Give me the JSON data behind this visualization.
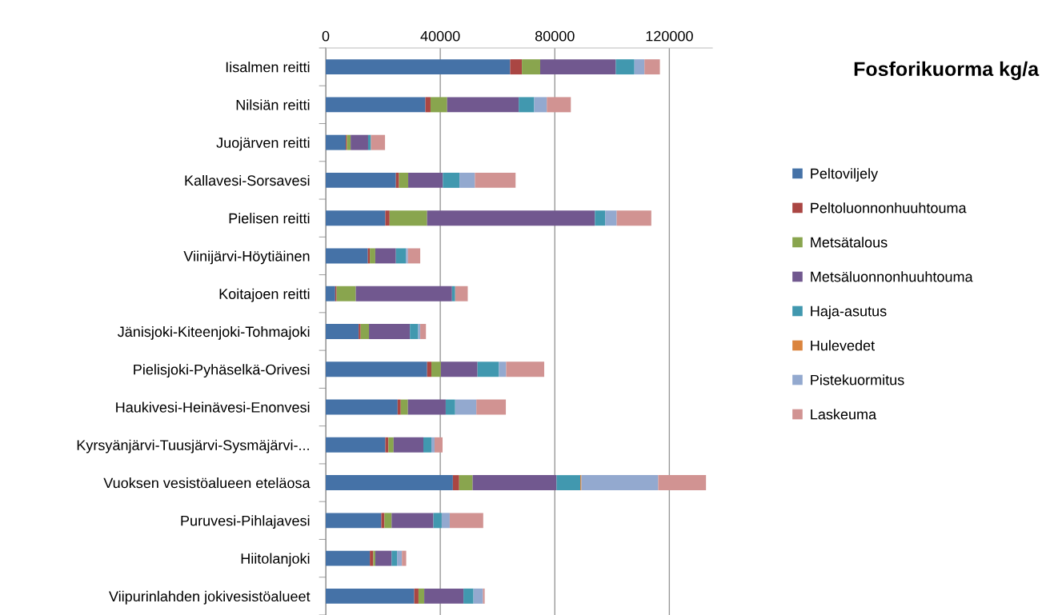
{
  "chart_data": {
    "type": "bar",
    "orientation": "horizontal",
    "stacked": true,
    "title": "Fosforikuorma kg/a",
    "categories": [
      "Iisalmen reitti",
      "Nilsiän reitti",
      "Juojärven reitti",
      "Kallavesi-Sorsavesi",
      "Pielisen reitti",
      "Viinijärvi-Höytiäinen",
      "Koitajoen reitti",
      "Jänisjoki-Kiteenjoki-Tohmajoki",
      "Pielisjoki-Pyhäselkä-Orivesi",
      "Haukivesi-Heinävesi-Enonvesi",
      "Kyrsyänjärvi-Tuusjärvi-Sysmäjärvi-...",
      "Vuoksen vesistöalueen eteläosa",
      "Puruvesi-Pihlajavesi",
      "Hiitolanjoki",
      "Viipurinlahden jokivesistöalueet"
    ],
    "series": [
      {
        "name": "Peltoviljely",
        "color": "#4572a7",
        "values": [
          64400,
          34800,
          7000,
          24500,
          20800,
          14700,
          3300,
          11500,
          35400,
          25100,
          20800,
          44400,
          19400,
          15400,
          30900
        ]
      },
      {
        "name": "Peltoluonnonhuuhtouma",
        "color": "#aa4643",
        "values": [
          4100,
          1800,
          400,
          1100,
          1500,
          700,
          500,
          700,
          1500,
          1100,
          1100,
          2200,
          1100,
          1200,
          1500
        ]
      },
      {
        "name": "Metsätalous",
        "color": "#89a54e",
        "values": [
          6400,
          5800,
          1300,
          3200,
          13100,
          1900,
          6700,
          2900,
          3300,
          2500,
          1800,
          4700,
          2500,
          700,
          2000
        ]
      },
      {
        "name": "Metsäluonnonhuuhtouma",
        "color": "#71588f",
        "values": [
          26400,
          25000,
          6100,
          12100,
          58600,
          7200,
          33600,
          14300,
          12800,
          13200,
          10400,
          29300,
          14600,
          5700,
          13700
        ]
      },
      {
        "name": "Haja-asutus",
        "color": "#4198af",
        "values": [
          6500,
          5400,
          1000,
          5800,
          3600,
          3500,
          1100,
          2900,
          7500,
          3300,
          2800,
          8300,
          2900,
          1900,
          3500
        ]
      },
      {
        "name": "Hulevedet",
        "color": "#db843d",
        "values": [
          0,
          0,
          0,
          0,
          0,
          0,
          0,
          null,
          0,
          0,
          0,
          400,
          0,
          0,
          0
        ]
      },
      {
        "name": "Pistekuormitus",
        "color": "#93a9cf",
        "values": [
          3500,
          4400,
          0,
          5400,
          4000,
          700,
          null,
          700,
          2500,
          7400,
          1100,
          26800,
          2800,
          1700,
          3300
        ]
      },
      {
        "name": "Laskeuma",
        "color": "#d19392",
        "values": [
          5400,
          8400,
          4900,
          14200,
          12100,
          4300,
          4400,
          2000,
          13300,
          10300,
          2800,
          16700,
          11700,
          1500,
          600
        ]
      }
    ],
    "xlim": [
      0,
      135000
    ],
    "xticks": [
      0,
      40000,
      80000,
      120000
    ],
    "grid": "x",
    "legend": "right"
  }
}
